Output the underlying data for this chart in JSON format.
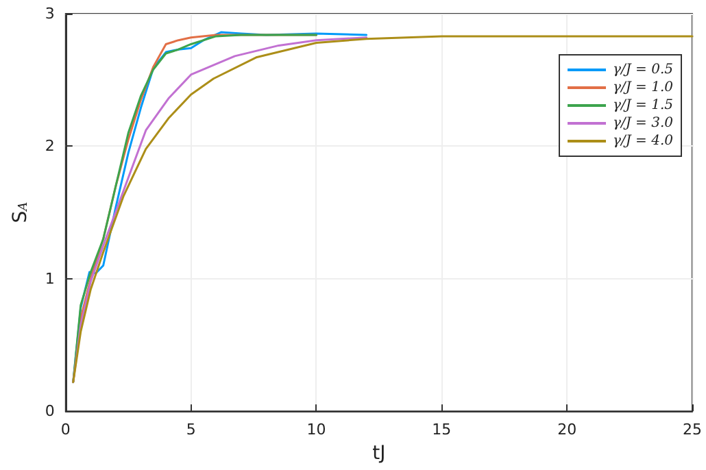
{
  "chart_data": {
    "type": "line",
    "xlabel": "tJ",
    "ylabel": "S$_{A}$",
    "xlim": [
      0,
      25
    ],
    "xticks": [
      0,
      5,
      10,
      15,
      20,
      25
    ],
    "ylim": [
      0,
      3
    ],
    "yticks": [
      0,
      1,
      2,
      3
    ],
    "grid": true,
    "legend": "top right",
    "marker": "none",
    "line_style": "solid",
    "series": [
      {
        "name": "γ/J = 0.5",
        "color": "#009af9",
        "x": [
          0.3,
          0.6,
          0.95,
          1.2,
          1.5,
          2,
          2.5,
          3,
          3.5,
          4,
          4.5,
          5,
          5.5,
          6.2,
          7,
          8,
          10,
          12
        ],
        "values": [
          0.22,
          0.78,
          1.05,
          1.04,
          1.1,
          1.54,
          1.95,
          2.29,
          2.59,
          2.71,
          2.73,
          2.74,
          2.8,
          2.86,
          2.85,
          2.84,
          2.85,
          2.84
        ]
      },
      {
        "name": "γ/J = 1.0",
        "color": "#e26f46",
        "x": [
          0.3,
          0.6,
          1,
          1.5,
          2,
          2.5,
          3,
          3.5,
          4,
          4.5,
          5,
          6,
          7,
          10
        ],
        "values": [
          0.22,
          0.7,
          1.0,
          1.3,
          1.7,
          2.05,
          2.35,
          2.6,
          2.77,
          2.8,
          2.82,
          2.84,
          2.84,
          2.84
        ]
      },
      {
        "name": "γ/J = 1.5",
        "color": "#3da44d",
        "x": [
          0.3,
          0.6,
          1,
          1.5,
          2,
          2.5,
          3,
          3.5,
          4,
          4.5,
          5,
          6,
          7,
          10
        ],
        "values": [
          0.22,
          0.8,
          1.05,
          1.3,
          1.7,
          2.1,
          2.38,
          2.58,
          2.7,
          2.73,
          2.77,
          2.83,
          2.84,
          2.84
        ]
      },
      {
        "name": "γ/J = 3.0",
        "color": "#c271d2",
        "x": [
          0.3,
          0.6,
          1,
          1.5,
          2.3,
          3.2,
          4.1,
          5,
          6.75,
          8.5,
          10,
          12
        ],
        "values": [
          0.22,
          0.65,
          0.98,
          1.25,
          1.66,
          2.12,
          2.36,
          2.54,
          2.68,
          2.76,
          2.8,
          2.82
        ]
      },
      {
        "name": "γ/J = 4.0",
        "color": "#ac8e18",
        "x": [
          0.3,
          0.6,
          1,
          1.5,
          2.3,
          3.2,
          4.1,
          5,
          5.9,
          7.6,
          10,
          12,
          15,
          20,
          25
        ],
        "values": [
          0.22,
          0.6,
          0.92,
          1.2,
          1.62,
          1.98,
          2.21,
          2.39,
          2.51,
          2.67,
          2.78,
          2.81,
          2.83,
          2.83,
          2.83
        ]
      }
    ]
  }
}
